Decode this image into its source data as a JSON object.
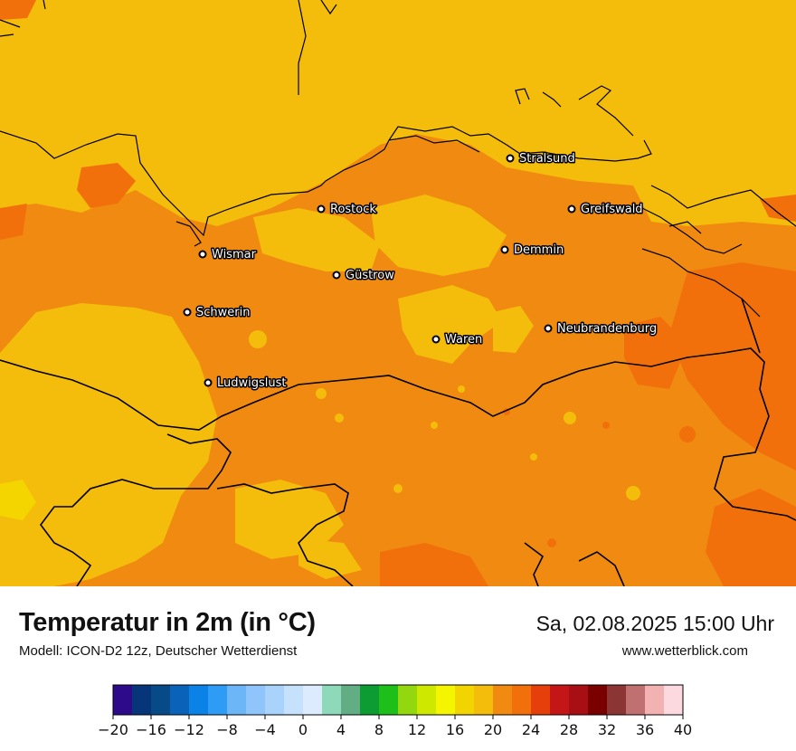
{
  "map": {
    "region": "Mecklenburg-Vorpommern",
    "colors": {
      "base_orange": "#f08a10",
      "light_yellow": "#f4bd0b",
      "bright_yellow": "#f5d500",
      "dark_orange": "#f2700b",
      "border": "#000000"
    },
    "cities": [
      {
        "name": "Stralsund",
        "label": "Stralsund"
      },
      {
        "name": "Rostock",
        "label": "Rostock"
      },
      {
        "name": "Greifswald",
        "label": "Greifswald"
      },
      {
        "name": "Wismar",
        "label": "Wismar"
      },
      {
        "name": "Demmin",
        "label": "Demmin"
      },
      {
        "name": "Güstrow",
        "label": "Güstrow"
      },
      {
        "name": "Schwerin",
        "label": "Schwerin"
      },
      {
        "name": "Neubrandenburg",
        "label": "Neubrandenburg"
      },
      {
        "name": "Waren",
        "label": "Waren"
      },
      {
        "name": "Ludwigslust",
        "label": "Ludwigslust"
      }
    ]
  },
  "header": {
    "title": "Temperatur in 2m (in °C)",
    "subtitle": "Modell: ICON-D2 12z, Deutscher Wetterdienst",
    "datetime": "Sa, 02.08.2025 15:00 Uhr",
    "website": "www.wetterblick.com"
  },
  "legend": {
    "min": -20,
    "max": 40,
    "step": 2,
    "colors": [
      "#2d0a8a",
      "#06357a",
      "#064a88",
      "#0a63b8",
      "#0a82e6",
      "#2e9cf5",
      "#6cb6f8",
      "#8fc5fa",
      "#a9d3fb",
      "#c6e1fc",
      "#dcebfd",
      "#8fd9bb",
      "#62ad84",
      "#0d9c34",
      "#1fbf1a",
      "#93d80f",
      "#cfe800",
      "#f5f500",
      "#f2d400",
      "#f4bd0b",
      "#f08a10",
      "#f2700b",
      "#e63f0b",
      "#c41616",
      "#a80f15",
      "#7a0000",
      "#8c3535",
      "#c07070",
      "#f3b2b2",
      "#fcd9df"
    ],
    "tick_labels": [
      "−20",
      "−16",
      "−12",
      "−8",
      "−4",
      "0",
      "4",
      "8",
      "12",
      "16",
      "20",
      "24",
      "28",
      "32",
      "36",
      "40"
    ]
  }
}
